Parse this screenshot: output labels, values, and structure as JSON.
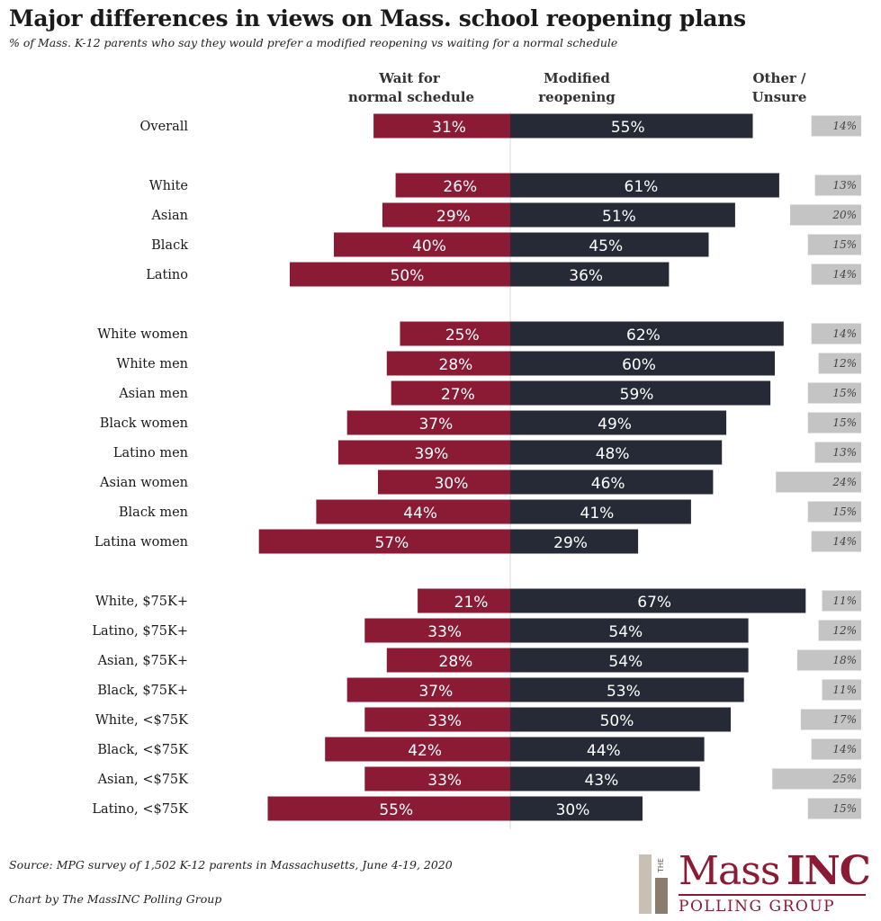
{
  "title": "Major differences in views on Mass. school reopening plans",
  "subtitle": "% of Mass. K-12 parents who say they would prefer a modified reopening vs waiting for a normal schedule",
  "chart_data": {
    "type": "bar",
    "orientation": "horizontal-diverging",
    "column_headers": {
      "wait_line1": "Wait for",
      "wait_line2": "normal schedule",
      "modified_line1": "Modified",
      "modified_line2": "reopening",
      "other_line1": "Other /",
      "other_line2": "Unsure"
    },
    "series": [
      {
        "name": "Wait for normal schedule",
        "color": "#8b1a35"
      },
      {
        "name": "Modified reopening",
        "color": "#252a36"
      },
      {
        "name": "Other / Unsure",
        "color": "#c4c4c4"
      }
    ],
    "groups": [
      [
        {
          "label": "Overall",
          "wait": 31,
          "modified": 55,
          "other": 14
        }
      ],
      [
        {
          "label": "White",
          "wait": 26,
          "modified": 61,
          "other": 13
        },
        {
          "label": "Asian",
          "wait": 29,
          "modified": 51,
          "other": 20
        },
        {
          "label": "Black",
          "wait": 40,
          "modified": 45,
          "other": 15
        },
        {
          "label": "Latino",
          "wait": 50,
          "modified": 36,
          "other": 14
        }
      ],
      [
        {
          "label": "White women",
          "wait": 25,
          "modified": 62,
          "other": 14
        },
        {
          "label": "White men",
          "wait": 28,
          "modified": 60,
          "other": 12
        },
        {
          "label": "Asian men",
          "wait": 27,
          "modified": 59,
          "other": 15
        },
        {
          "label": "Black women",
          "wait": 37,
          "modified": 49,
          "other": 15
        },
        {
          "label": "Latino men",
          "wait": 39,
          "modified": 48,
          "other": 13
        },
        {
          "label": "Asian women",
          "wait": 30,
          "modified": 46,
          "other": 24
        },
        {
          "label": "Black men",
          "wait": 44,
          "modified": 41,
          "other": 15
        },
        {
          "label": "Latina women",
          "wait": 57,
          "modified": 29,
          "other": 14
        }
      ],
      [
        {
          "label": "White, $75K+",
          "wait": 21,
          "modified": 67,
          "other": 11
        },
        {
          "label": "Latino, $75K+",
          "wait": 33,
          "modified": 54,
          "other": 12
        },
        {
          "label": "Asian, $75K+",
          "wait": 28,
          "modified": 54,
          "other": 18
        },
        {
          "label": "Black, $75K+",
          "wait": 37,
          "modified": 53,
          "other": 11
        },
        {
          "label": "White, <$75K",
          "wait": 33,
          "modified": 50,
          "other": 17
        },
        {
          "label": "Black, <$75K",
          "wait": 42,
          "modified": 44,
          "other": 14
        },
        {
          "label": "Asian, <$75K",
          "wait": 33,
          "modified": 43,
          "other": 25
        },
        {
          "label": "Latino, <$75K",
          "wait": 55,
          "modified": 30,
          "other": 15
        }
      ]
    ]
  },
  "footer": {
    "source": "Source: MPG survey of 1,502 K-12 parents in Massachusetts, June 4-19, 2020",
    "credit": "Chart by The MassINC Polling Group"
  },
  "logo": {
    "the": "THE",
    "mass": "Mass",
    "inc": "INC",
    "polling": "POLLING GROUP"
  }
}
